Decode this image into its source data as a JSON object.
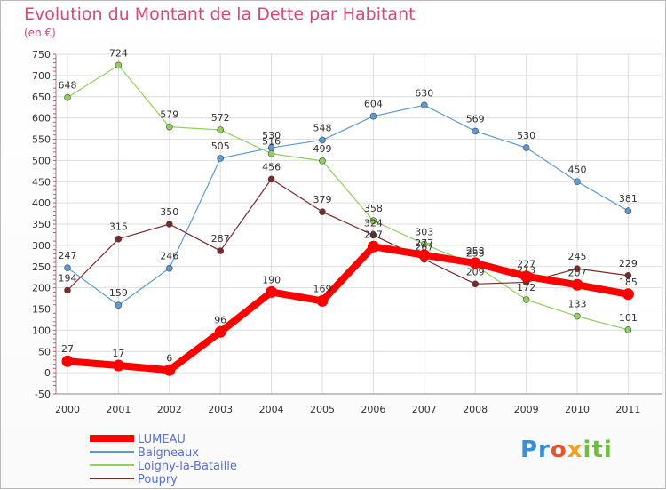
{
  "header": {
    "title": "Evolution du Montant de la Dette par Habitant",
    "unit": "(en €)"
  },
  "logo": {
    "text": "Proxiti"
  },
  "chart_data": {
    "type": "line",
    "title": "Evolution du Montant de la Dette par Habitant",
    "ylabel": "(en €)",
    "xlabel": "",
    "ylim": [
      -50,
      750
    ],
    "yticks": [
      -50,
      0,
      50,
      100,
      150,
      200,
      250,
      300,
      350,
      400,
      450,
      500,
      550,
      600,
      650,
      700,
      750
    ],
    "grid": true,
    "legend": "bottom-left",
    "categories": [
      "2000",
      "2001",
      "2002",
      "2003",
      "2004",
      "2005",
      "2006",
      "2007",
      "2008",
      "2009",
      "2010",
      "2011"
    ],
    "series": [
      {
        "name": "Baigneaux",
        "color": "#5b9bd5",
        "values": [
          247,
          159,
          246,
          505,
          530,
          548,
          604,
          630,
          569,
          530,
          450,
          381
        ]
      },
      {
        "name": "Loigny-la-Bataille",
        "color": "#8fd15b",
        "values": [
          648,
          724,
          579,
          572,
          516,
          499,
          358,
          303,
          253,
          172,
          133,
          101
        ]
      },
      {
        "name": "Poupry",
        "color": "#7a2a2a",
        "values": [
          194,
          315,
          350,
          287,
          456,
          379,
          324,
          267,
          209,
          213,
          245,
          229
        ]
      },
      {
        "name": "LUMEAU",
        "color": "#ff0000",
        "values": [
          27,
          17,
          6,
          96,
          190,
          169,
          297,
          277,
          258,
          227,
          207,
          185
        ]
      }
    ],
    "legend_order": [
      "LUMEAU",
      "Baigneaux",
      "Loigny-la-Bataille",
      "Poupry"
    ]
  }
}
